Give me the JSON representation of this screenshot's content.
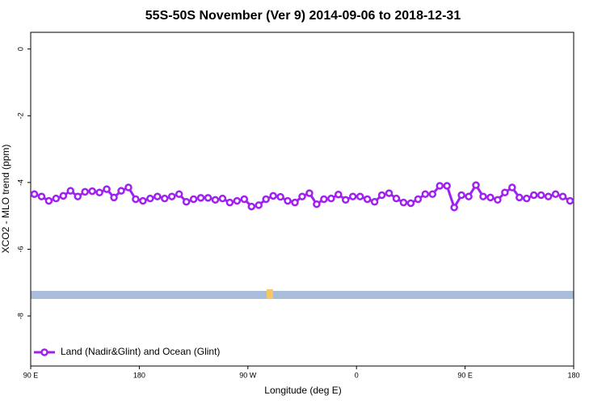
{
  "chart_data": {
    "type": "line",
    "title": "55S-50S November (Ver 9)   2014-09-06 to 2018-12-31",
    "x_label": "Longitude (deg E)",
    "y_label": "XCO2 - MLO trend (ppm)",
    "xlim": [
      90,
      540
    ],
    "xticks": [
      {
        "value": 90,
        "label": "90 E"
      },
      180,
      {
        "value": 270,
        "label": "90 W"
      },
      {
        "value": 360,
        "label": "0"
      },
      {
        "value": 450,
        "label": "90 E"
      },
      {
        "value": 540,
        "label": "180"
      }
    ],
    "ylim": [
      -9.5,
      0.5
    ],
    "yticks": [
      0,
      -2,
      -4,
      -6,
      -8
    ],
    "legend": "bottom-left",
    "x": [
      93,
      99,
      105,
      111,
      117,
      123,
      129,
      135,
      141,
      147,
      153,
      159,
      165,
      171,
      177,
      183,
      189,
      195,
      201,
      207,
      213,
      219,
      225,
      231,
      237,
      243,
      249,
      255,
      261,
      267,
      273,
      279,
      285,
      291,
      297,
      303,
      309,
      315,
      321,
      327,
      333,
      339,
      345,
      351,
      357,
      363,
      369,
      375,
      381,
      387,
      393,
      399,
      405,
      411,
      417,
      423,
      429,
      435,
      441,
      447,
      453,
      459,
      465,
      471,
      477,
      483,
      489,
      495,
      501,
      507,
      513,
      519,
      525,
      531,
      537
    ],
    "series": [
      {
        "name": "Land (Nadir&Glint) and Ocean (Glint)",
        "color": "#a020f0",
        "values": [
          -4.35,
          -4.42,
          -4.55,
          -4.48,
          -4.4,
          -4.25,
          -4.42,
          -4.28,
          -4.26,
          -4.3,
          -4.2,
          -4.45,
          -4.25,
          -4.15,
          -4.5,
          -4.55,
          -4.48,
          -4.42,
          -4.48,
          -4.42,
          -4.35,
          -4.58,
          -4.5,
          -4.46,
          -4.46,
          -4.52,
          -4.48,
          -4.6,
          -4.55,
          -4.5,
          -4.72,
          -4.68,
          -4.5,
          -4.4,
          -4.43,
          -4.55,
          -4.6,
          -4.42,
          -4.32,
          -4.65,
          -4.5,
          -4.48,
          -4.36,
          -4.52,
          -4.42,
          -4.42,
          -4.5,
          -4.58,
          -4.38,
          -4.32,
          -4.48,
          -4.6,
          -4.62,
          -4.5,
          -4.35,
          -4.35,
          -4.1,
          -4.1,
          -4.75,
          -4.38,
          -4.42,
          -4.08,
          -4.42,
          -4.45,
          -4.52,
          -4.3,
          -4.15,
          -4.45,
          -4.48,
          -4.38,
          -4.38,
          -4.42,
          -4.35,
          -4.42,
          -4.55
        ]
      }
    ]
  }
}
